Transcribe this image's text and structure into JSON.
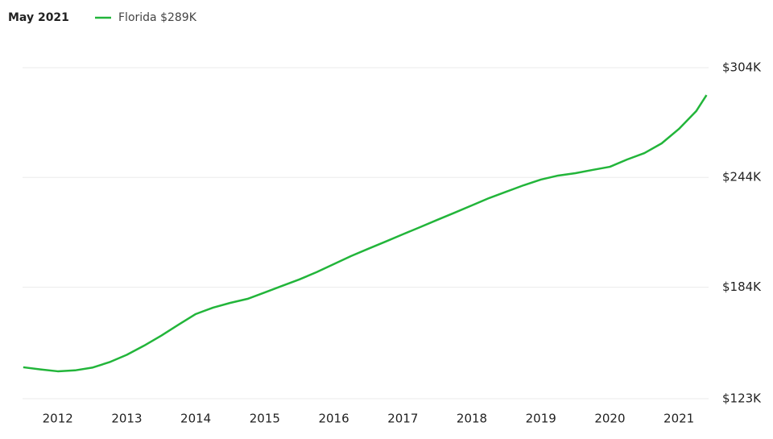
{
  "chart_data": {
    "type": "line",
    "highlight": {
      "x": "May 2021",
      "value": 289000,
      "label": "$289K"
    },
    "x": [
      2011.5,
      2011.75,
      2012.0,
      2012.25,
      2012.5,
      2012.75,
      2013.0,
      2013.25,
      2013.5,
      2013.75,
      2014.0,
      2014.25,
      2014.5,
      2014.75,
      2015.0,
      2015.25,
      2015.5,
      2015.75,
      2016.0,
      2016.25,
      2016.5,
      2016.75,
      2017.0,
      2017.25,
      2017.5,
      2017.75,
      2018.0,
      2018.25,
      2018.5,
      2018.75,
      2019.0,
      2019.25,
      2019.5,
      2019.75,
      2020.0,
      2020.25,
      2020.5,
      2020.75,
      2021.0,
      2021.25,
      2021.4
    ],
    "series": [
      {
        "name": "Florida",
        "color": "#22b53a",
        "values": [
          140200,
          139000,
          138000,
          138500,
          140000,
          143000,
          147000,
          152000,
          157500,
          163500,
          169300,
          172800,
          175400,
          177600,
          181100,
          184700,
          188200,
          192200,
          196600,
          201000,
          205000,
          208900,
          212900,
          216800,
          220800,
          224700,
          228700,
          232700,
          236200,
          239700,
          242800,
          245000,
          246300,
          248100,
          249800,
          253800,
          257300,
          262600,
          270500,
          280200,
          289000
        ]
      }
    ],
    "xlim": [
      2011.49,
      2021.43
    ],
    "xticks": [
      2012,
      2013,
      2014,
      2015,
      2016,
      2017,
      2018,
      2019,
      2020,
      2021
    ],
    "ylim": [
      123000,
      304000
    ],
    "yticks": [
      {
        "value": 123000,
        "label": "$123K"
      },
      {
        "value": 184000,
        "label": "$184K"
      },
      {
        "value": 244000,
        "label": "$244K"
      },
      {
        "value": 304000,
        "label": "$304K"
      }
    ],
    "grid": true
  }
}
